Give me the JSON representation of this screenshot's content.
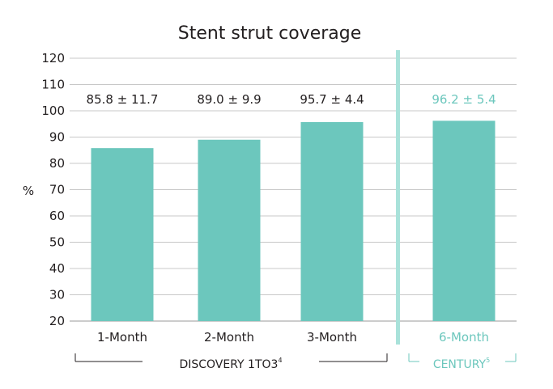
{
  "chart_data": {
    "type": "bar",
    "title": "Stent strut coverage",
    "ylabel": "%",
    "xlabel": "",
    "ylim": [
      20,
      120
    ],
    "yticks": [
      20,
      30,
      40,
      50,
      60,
      70,
      80,
      90,
      100,
      110,
      120
    ],
    "grid": true,
    "categories": [
      "1-Month",
      "2-Month",
      "3-Month",
      "6-Month"
    ],
    "values": [
      85.8,
      89.0,
      95.7,
      96.2
    ],
    "data_labels": [
      "85.8 ± 11.7",
      "89.0 ± 9.9",
      "95.7 ± 4.4",
      "96.2 ± 5.4"
    ],
    "groups": [
      {
        "name": "DISCOVERY 1TO3",
        "superscript": "4",
        "categories": [
          "1-Month",
          "2-Month",
          "3-Month"
        ],
        "color": "#231f20"
      },
      {
        "name": "CENTURY",
        "superscript": "5",
        "categories": [
          "6-Month"
        ],
        "color": "#6cc7bd"
      }
    ],
    "colors": {
      "bar": "#6cc7bd",
      "separator": "#a9e2da",
      "grid": "#c8c8c8",
      "text": "#231f20",
      "accent_text": "#6cc7bd"
    }
  }
}
